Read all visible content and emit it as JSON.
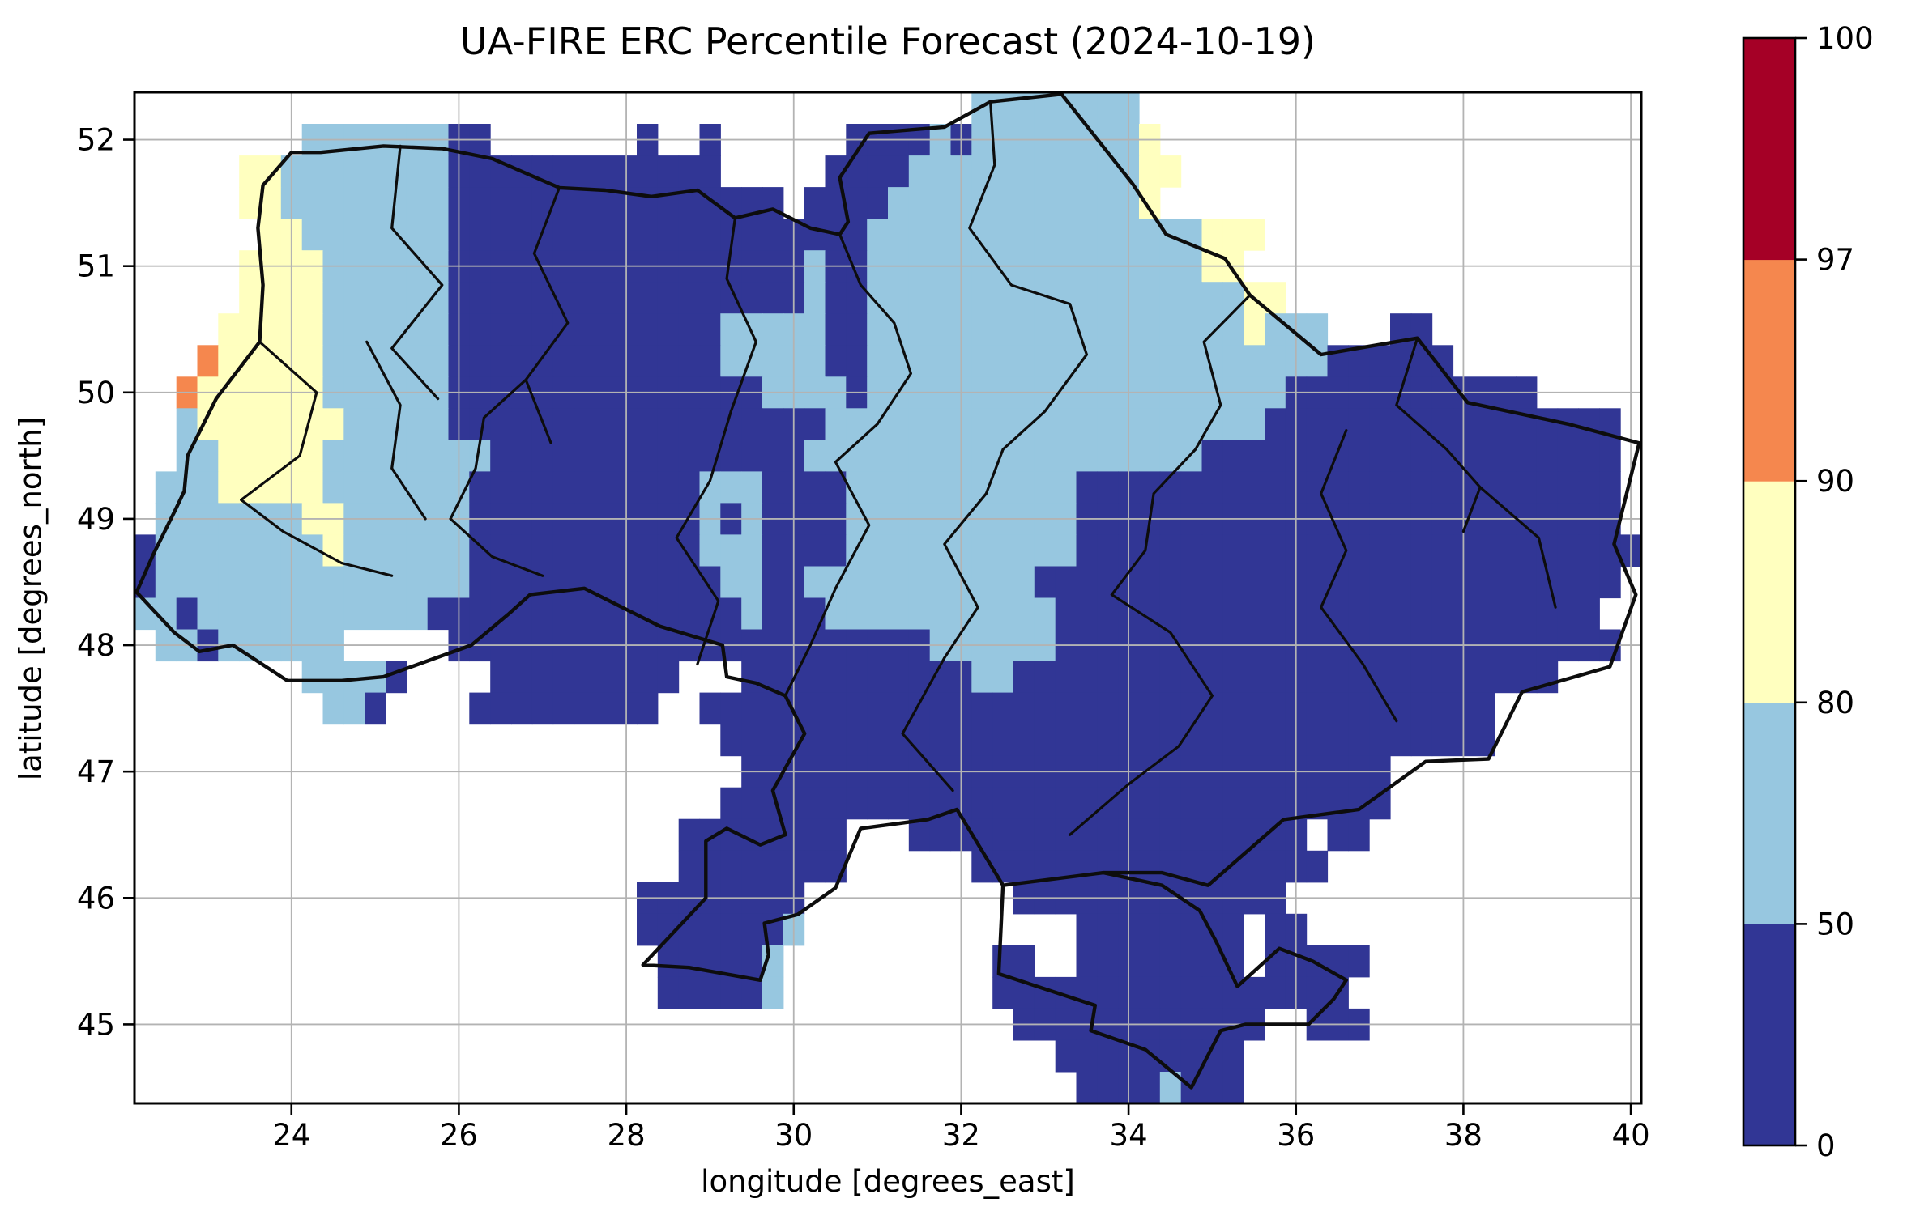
{
  "title": "UA-FIRE ERC Percentile Forecast (2024-10-19)",
  "xlabel": "longitude [degrees_east]",
  "ylabel": "latitude [degrees_north]",
  "x_ticks": [
    24,
    26,
    28,
    30,
    32,
    34,
    36,
    38,
    40
  ],
  "y_ticks": [
    52,
    51,
    50,
    49,
    48,
    47,
    46,
    45
  ],
  "colorbar": {
    "tick_labels": [
      0,
      50,
      80,
      90,
      97,
      100
    ],
    "segment_colors_bottom_up": [
      "#313695",
      "#97c7e0",
      "#ffffbf",
      "#f5874e",
      "#a50026"
    ]
  },
  "chart_data": {
    "type": "heatmap",
    "title": "UA-FIRE ERC Percentile Forecast (2024-10-19)",
    "xlabel": "longitude [degrees_east]",
    "ylabel": "latitude [degrees_north]",
    "xlim": [
      22.125,
      40.125
    ],
    "ylim": [
      44.375,
      52.375
    ],
    "cell_size_deg": 0.25,
    "grid_origin": {
      "lon_left": 22.125,
      "lat_top": 52.375
    },
    "legend_boundaries": [
      0,
      50,
      80,
      90,
      97,
      100
    ],
    "category_colors": {
      "1": "#313695",
      "2": "#97c7e0",
      "3": "#ffffbf",
      "4": "#f5874e",
      "5": "#a50026"
    },
    "category_meaning": {
      "1": "ERC percentile 0-50",
      "2": "ERC percentile 50-80",
      "3": "ERC percentile 80-90",
      "4": "ERC percentile 90-97",
      "5": "ERC percentile 97-100"
    },
    "rows": [
      "........................................22222222........................",
      "........222222211.......1..1......111121222222223.......................",
      ".....33222222221111111111111.....11112222222222233......................",
      ".....33222222221111111111111111.11112222222222223.......................",
      "......332222222111111111111111111112222222222222222333..................",
      ".....333322222211111111111111111211222222222222222233...................",
      ".....33332222221111111111111111121122222222222222222233.................",
      "....33333222222111111111111122222112222222222222222223222...11..........",
      "...433333222222111111111111122222112222222222222222222222111111.........",
      "..43333332222221111111111111112222122222222222222222222111111111111.....",
      "..233333332222211111111111111111122222222222222222222211111111111111111..",
      "..223333322222222111111111111111222222222222222222211111111111111111111",
      ".2223333322222221111111111122211112222222222211111111111111111111111111",
      ".2222222332222221111111111121211112222222222211111111111111111111111111",
      "122222222322222211111111111222111122222222222111111111111111111111111111",
      "12222222222222221111111111112211222222222221111111111111111111111111111",
      "2212222222222211111111111111121112222222222211111111111111111111111111.",
      ".221222222.....11111111111111111111111222222111111111111111111111111111.",
      "........22221....111111111...111111111112211111111111111111111111111.....",
      ".........221....111111111..11111111111111111111111111111111111111.......",
      "............................1111111111111111111111111111111111111.......",
      ".............................1111111111111111111111111111111............",
      "............................11111111111111111111111111111111............",
      "..........................11111111...1111111111111111111.11.............",
      "..........................11111111......11111111111111111...............",
      "........................11111111..........1111111111111.................",
      "........................11111112.............11111111.11................",
      ".........................111112..........11..11111111.11111.............",
      ".........................111112..........11111111111111111..............",
      "..........................................111111111111..111.............",
      "............................................111111111...................",
      ".............................................11112111..................."
    ]
  },
  "boundaries": {
    "country": [
      [
        22.15,
        48.42
      ],
      [
        22.35,
        48.72
      ],
      [
        22.62,
        49.08
      ],
      [
        22.72,
        49.22
      ],
      [
        22.76,
        49.5
      ],
      [
        23.1,
        49.95
      ],
      [
        23.62,
        50.4
      ],
      [
        23.66,
        50.85
      ],
      [
        23.6,
        51.3
      ],
      [
        23.66,
        51.64
      ],
      [
        24.0,
        51.9
      ],
      [
        24.35,
        51.9
      ],
      [
        25.1,
        51.95
      ],
      [
        25.8,
        51.93
      ],
      [
        26.4,
        51.85
      ],
      [
        27.2,
        51.62
      ],
      [
        27.75,
        51.6
      ],
      [
        28.3,
        51.55
      ],
      [
        28.85,
        51.6
      ],
      [
        29.3,
        51.38
      ],
      [
        29.75,
        51.45
      ],
      [
        30.2,
        51.3
      ],
      [
        30.55,
        51.25
      ],
      [
        30.65,
        51.35
      ],
      [
        30.55,
        51.7
      ],
      [
        30.9,
        52.05
      ],
      [
        31.8,
        52.1
      ],
      [
        32.35,
        52.3
      ],
      [
        33.2,
        52.36
      ],
      [
        34.05,
        51.65
      ],
      [
        34.45,
        51.25
      ],
      [
        35.15,
        51.06
      ],
      [
        35.45,
        50.77
      ],
      [
        36.3,
        50.3
      ],
      [
        37.45,
        50.43
      ],
      [
        38.05,
        49.92
      ],
      [
        39.25,
        49.75
      ],
      [
        40.1,
        49.6
      ],
      [
        39.8,
        48.8
      ],
      [
        40.06,
        48.4
      ],
      [
        39.75,
        47.83
      ],
      [
        38.7,
        47.63
      ],
      [
        38.3,
        47.1
      ],
      [
        37.55,
        47.08
      ],
      [
        36.75,
        46.7
      ],
      [
        35.85,
        46.62
      ],
      [
        34.95,
        46.1
      ],
      [
        34.4,
        46.2
      ],
      [
        33.7,
        46.2
      ],
      [
        32.5,
        46.1
      ],
      [
        31.95,
        46.7
      ],
      [
        31.6,
        46.62
      ],
      [
        30.8,
        46.55
      ],
      [
        30.5,
        46.08
      ],
      [
        30.05,
        45.87
      ],
      [
        29.65,
        45.8
      ],
      [
        29.7,
        45.55
      ],
      [
        29.6,
        45.35
      ],
      [
        28.75,
        45.45
      ],
      [
        28.2,
        45.47
      ],
      [
        28.95,
        46.0
      ],
      [
        28.95,
        46.45
      ],
      [
        29.2,
        46.55
      ],
      [
        29.6,
        46.42
      ],
      [
        29.9,
        46.5
      ],
      [
        29.75,
        46.85
      ],
      [
        30.13,
        47.3
      ],
      [
        29.9,
        47.6
      ],
      [
        29.55,
        47.7
      ],
      [
        29.2,
        47.75
      ],
      [
        29.15,
        48.0
      ],
      [
        28.4,
        48.15
      ],
      [
        27.5,
        48.45
      ],
      [
        26.85,
        48.4
      ],
      [
        26.6,
        48.25
      ],
      [
        26.15,
        48.0
      ],
      [
        25.1,
        47.75
      ],
      [
        24.6,
        47.72
      ],
      [
        23.95,
        47.72
      ],
      [
        23.3,
        48.0
      ],
      [
        22.9,
        47.95
      ],
      [
        22.6,
        48.1
      ],
      [
        22.15,
        48.42
      ]
    ],
    "crimea": [
      [
        32.5,
        46.1
      ],
      [
        32.45,
        45.4
      ],
      [
        33.6,
        45.15
      ],
      [
        33.55,
        44.95
      ],
      [
        34.2,
        44.8
      ],
      [
        34.75,
        44.5
      ],
      [
        35.1,
        44.95
      ],
      [
        35.4,
        45.0
      ],
      [
        36.15,
        45.0
      ],
      [
        36.45,
        45.2
      ],
      [
        36.6,
        45.35
      ],
      [
        36.2,
        45.5
      ],
      [
        35.8,
        45.6
      ],
      [
        35.3,
        45.3
      ],
      [
        35.05,
        45.65
      ],
      [
        34.85,
        45.9
      ],
      [
        34.4,
        46.1
      ],
      [
        33.7,
        46.2
      ]
    ],
    "internal": [
      [
        [
          25.3,
          51.95
        ],
        [
          25.2,
          51.3
        ],
        [
          25.8,
          50.85
        ],
        [
          25.2,
          50.35
        ],
        [
          25.75,
          49.95
        ]
      ],
      [
        [
          27.2,
          51.62
        ],
        [
          26.9,
          51.1
        ],
        [
          27.3,
          50.55
        ],
        [
          26.8,
          50.1
        ],
        [
          27.1,
          49.6
        ]
      ],
      [
        [
          29.3,
          51.38
        ],
        [
          29.2,
          50.9
        ],
        [
          29.55,
          50.4
        ],
        [
          29.25,
          49.85
        ]
      ],
      [
        [
          30.55,
          51.25
        ],
        [
          30.8,
          50.85
        ],
        [
          31.2,
          50.55
        ],
        [
          31.4,
          50.15
        ],
        [
          31.0,
          49.75
        ]
      ],
      [
        [
          32.35,
          52.3
        ],
        [
          32.4,
          51.8
        ],
        [
          32.1,
          51.3
        ],
        [
          32.6,
          50.85
        ],
        [
          33.3,
          50.7
        ],
        [
          33.5,
          50.3
        ]
      ],
      [
        [
          35.45,
          50.77
        ],
        [
          34.9,
          50.4
        ],
        [
          35.1,
          49.9
        ],
        [
          34.8,
          49.55
        ]
      ],
      [
        [
          37.45,
          50.43
        ],
        [
          37.2,
          49.9
        ],
        [
          37.8,
          49.55
        ],
        [
          38.2,
          49.25
        ],
        [
          38.0,
          48.9
        ]
      ],
      [
        [
          36.6,
          49.7
        ],
        [
          36.3,
          49.2
        ],
        [
          36.6,
          48.75
        ],
        [
          36.3,
          48.3
        ]
      ],
      [
        [
          38.2,
          49.25
        ],
        [
          38.9,
          48.85
        ],
        [
          39.1,
          48.3
        ]
      ],
      [
        [
          33.5,
          50.3
        ],
        [
          33.0,
          49.85
        ],
        [
          32.5,
          49.55
        ],
        [
          32.3,
          49.2
        ]
      ],
      [
        [
          31.0,
          49.75
        ],
        [
          30.5,
          49.45
        ],
        [
          30.9,
          48.95
        ],
        [
          30.5,
          48.45
        ]
      ],
      [
        [
          29.25,
          49.85
        ],
        [
          29.0,
          49.3
        ],
        [
          28.6,
          48.85
        ],
        [
          29.1,
          48.35
        ],
        [
          28.85,
          47.85
        ]
      ],
      [
        [
          26.8,
          50.1
        ],
        [
          26.3,
          49.8
        ],
        [
          26.2,
          49.4
        ],
        [
          25.9,
          49.0
        ]
      ],
      [
        [
          24.9,
          50.4
        ],
        [
          25.3,
          49.9
        ],
        [
          25.2,
          49.4
        ],
        [
          25.6,
          49.0
        ]
      ],
      [
        [
          23.62,
          50.4
        ],
        [
          24.3,
          50.0
        ],
        [
          24.1,
          49.5
        ],
        [
          23.4,
          49.15
        ]
      ],
      [
        [
          25.9,
          49.0
        ],
        [
          26.4,
          48.7
        ],
        [
          27.0,
          48.55
        ]
      ],
      [
        [
          23.4,
          49.15
        ],
        [
          23.9,
          48.9
        ],
        [
          24.6,
          48.65
        ],
        [
          25.2,
          48.55
        ]
      ],
      [
        [
          34.8,
          49.55
        ],
        [
          34.3,
          49.2
        ],
        [
          34.2,
          48.75
        ],
        [
          33.8,
          48.4
        ]
      ],
      [
        [
          36.3,
          48.3
        ],
        [
          36.8,
          47.85
        ],
        [
          37.2,
          47.4
        ]
      ],
      [
        [
          33.8,
          48.4
        ],
        [
          34.5,
          48.1
        ],
        [
          35.0,
          47.6
        ],
        [
          34.6,
          47.2
        ],
        [
          34.0,
          46.9
        ]
      ],
      [
        [
          32.3,
          49.2
        ],
        [
          31.8,
          48.8
        ],
        [
          32.2,
          48.3
        ],
        [
          31.8,
          47.9
        ]
      ],
      [
        [
          30.5,
          48.45
        ],
        [
          30.2,
          48.0
        ],
        [
          29.9,
          47.6
        ]
      ],
      [
        [
          31.8,
          47.9
        ],
        [
          31.3,
          47.3
        ],
        [
          31.9,
          46.85
        ]
      ],
      [
        [
          34.0,
          46.9
        ],
        [
          33.3,
          46.5
        ]
      ]
    ]
  }
}
